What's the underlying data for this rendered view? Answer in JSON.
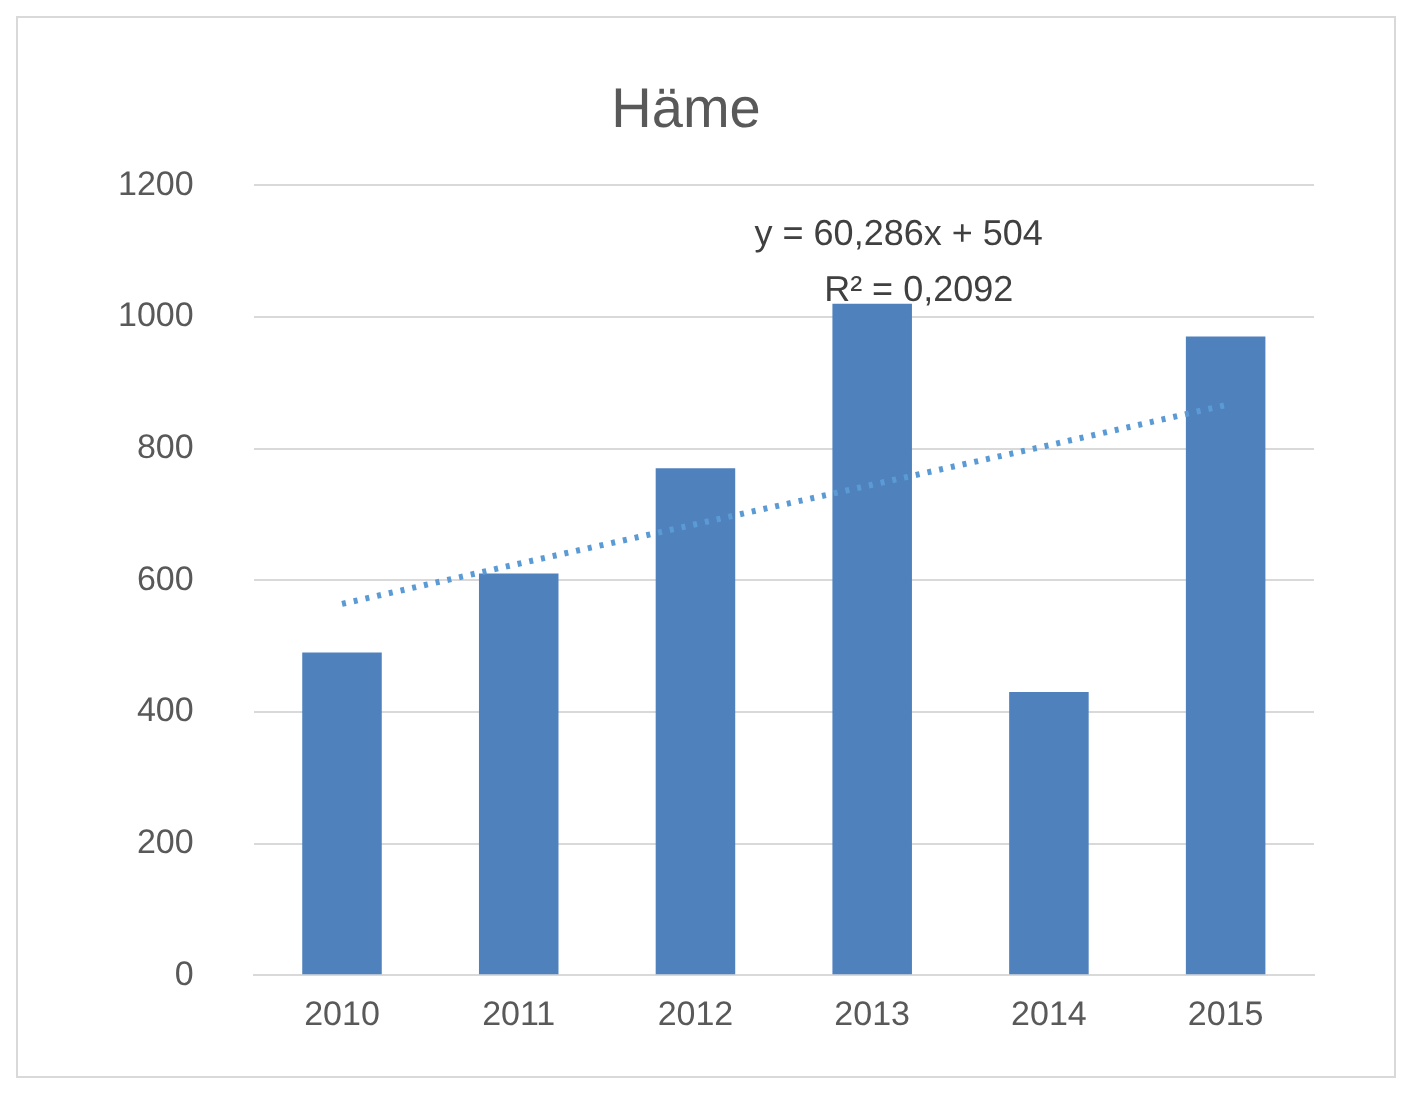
{
  "chart_data": {
    "type": "bar",
    "title": "Häme",
    "categories": [
      "2010",
      "2011",
      "2012",
      "2013",
      "2014",
      "2015"
    ],
    "series": [
      {
        "color": "#4f81bd",
        "values": [
          490,
          610,
          770,
          1020,
          430,
          970
        ]
      },
      {
        "type": "line",
        "color": "#5b9bd5",
        "values": [
          564,
          625,
          685,
          745,
          805,
          866
        ],
        "line_style": "dotted",
        "marker": "none"
      }
    ],
    "ylim": [
      0,
      1200
    ],
    "yticks": [
      0,
      200,
      400,
      600,
      800,
      1000,
      1200
    ],
    "grid": "y",
    "legend": false,
    "annotations": [
      "y = 60,286x + 504",
      "R² = 0,2092"
    ]
  }
}
